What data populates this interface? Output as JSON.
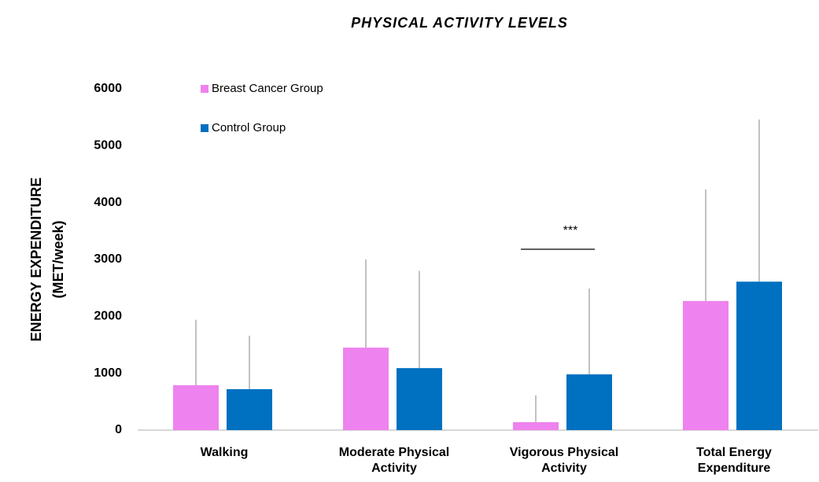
{
  "chart_data": {
    "type": "bar",
    "title": "PHYSICAL ACTIVITY LEVELS",
    "ylabel": [
      "ENERGY EXPENDITURE",
      "(MET/week)"
    ],
    "categories": [
      "Walking",
      "Moderate Physical Activity",
      "Vigorous Physical Activity",
      "Total Energy Expenditure"
    ],
    "series": [
      {
        "name": "Breast Cancer Group",
        "color": "#ee82ee",
        "values": [
          790,
          1450,
          140,
          2270
        ],
        "errors": [
          1150,
          1550,
          470,
          1960
        ]
      },
      {
        "name": "Control Group",
        "color": "#0070c0",
        "values": [
          720,
          1090,
          980,
          2610
        ],
        "errors": [
          940,
          1710,
          1510,
          2850
        ]
      }
    ],
    "ylim": [
      0,
      6000
    ],
    "yticks": [
      0,
      1000,
      2000,
      3000,
      4000,
      5000,
      6000
    ],
    "annotation": "***"
  }
}
